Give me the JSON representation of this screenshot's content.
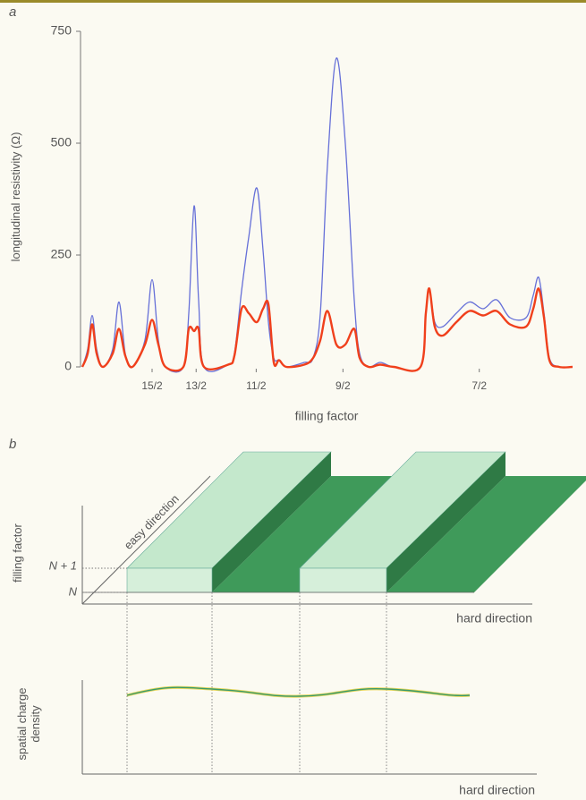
{
  "chart_data": {
    "type": "line",
    "panel_label": "a",
    "ylabel": "longitudinal resistivity (Ω)",
    "xlabel": "filling factor",
    "xscale": "reciprocal",
    "xlim": [
      10,
      3
    ],
    "xticks": [
      {
        "value": 7.5,
        "label": "15/2"
      },
      {
        "value": 6.5,
        "label": "13/2"
      },
      {
        "value": 5.5,
        "label": "11/2"
      },
      {
        "value": 4.5,
        "label": "9/2"
      },
      {
        "value": 3.5,
        "label": "7/2"
      }
    ],
    "ylim": [
      0,
      750
    ],
    "yticks": [
      0,
      250,
      500,
      750
    ],
    "x": [
      9.917,
      9.677,
      9.486,
      9.302,
      9.057,
      8.696,
      8.481,
      8.276,
      8.054,
      7.692,
      7.5,
      7.339,
      7.164,
      6.761,
      6.648,
      6.54,
      6.452,
      6.349,
      5.926,
      5.825,
      5.714,
      5.607,
      5.492,
      5.405,
      5.333,
      5.263,
      5.195,
      5.106,
      4.898,
      4.8,
      4.724,
      4.651,
      4.563,
      4.478,
      4.396,
      4.348,
      4.27,
      4.174,
      4.068,
      3.871,
      3.834,
      3.81,
      3.774,
      3.721,
      3.636,
      3.556,
      3.478,
      3.404,
      3.333,
      3.252,
      3.217,
      3.191,
      3.166,
      3.141,
      3.097,
      3.038
    ],
    "series": [
      {
        "color": "#6670d8",
        "values": [
          0,
          40,
          115,
          40,
          0,
          40,
          145,
          30,
          0,
          60,
          195,
          60,
          0,
          0,
          120,
          360,
          150,
          0,
          5,
          30,
          170,
          290,
          400,
          260,
          100,
          20,
          15,
          0,
          10,
          20,
          120,
          450,
          690,
          500,
          150,
          30,
          0,
          10,
          0,
          0,
          120,
          175,
          100,
          90,
          120,
          145,
          130,
          150,
          110,
          110,
          160,
          200,
          120,
          20,
          0,
          0
        ]
      },
      {
        "color": "#f0401c",
        "values": [
          0,
          30,
          95,
          30,
          0,
          30,
          85,
          25,
          0,
          50,
          105,
          50,
          0,
          0,
          85,
          80,
          85,
          0,
          5,
          25,
          130,
          120,
          100,
          130,
          140,
          10,
          15,
          0,
          5,
          20,
          60,
          125,
          50,
          50,
          85,
          20,
          0,
          5,
          0,
          0,
          120,
          175,
          90,
          70,
          100,
          125,
          115,
          125,
          95,
          90,
          130,
          175,
          110,
          15,
          0,
          0
        ]
      }
    ]
  },
  "diagram": {
    "label": "b",
    "easy_direction": "easy direction",
    "y_label": "filling factor",
    "level_upper": "N + 1",
    "level_lower": "N",
    "hard_direction_top": "hard direction",
    "density_label": "spatial charge density",
    "hard_direction_bottom": "hard direction"
  }
}
